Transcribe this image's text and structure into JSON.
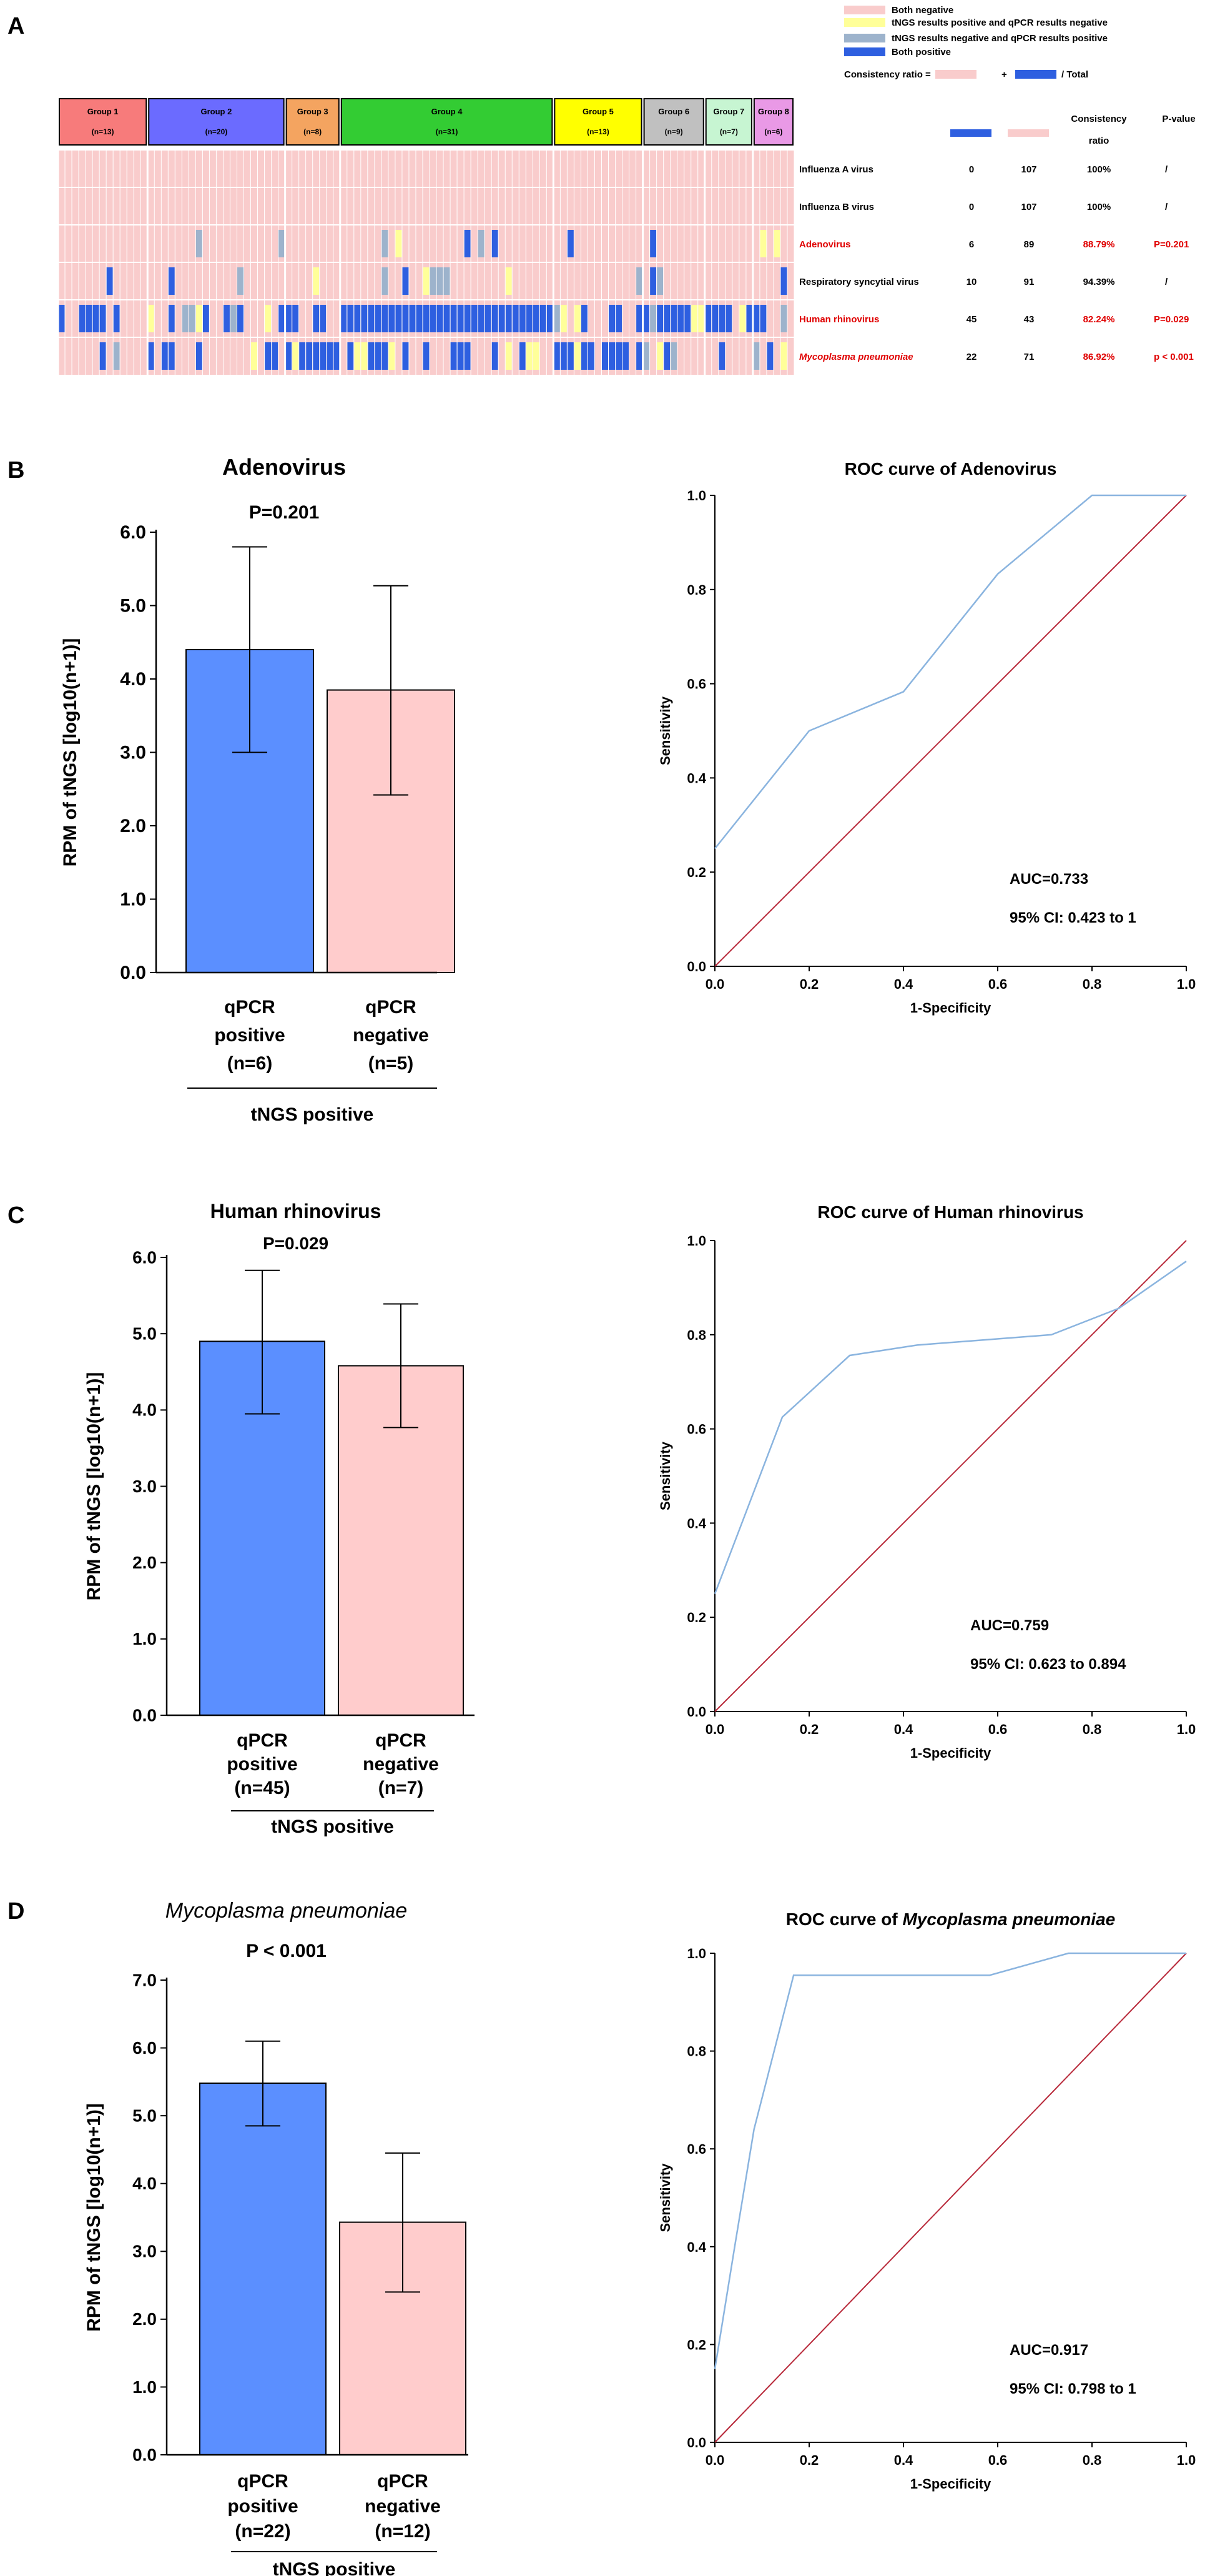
{
  "panel_labels": [
    "A",
    "B",
    "C",
    "D"
  ],
  "colors": {
    "both_negative": "#F9CCCC",
    "tngs_pos_qpcr_neg": "#FFFF99",
    "tngs_neg_qpcr_pos": "#9DB3CC",
    "both_positive": "#2E5FE0",
    "bar_blue": "#5B8FFF",
    "bar_pink": "#FFCCCC",
    "roc_curve": "#8AB4DF",
    "roc_diagonal": "#B8293A",
    "highlight_red": "#E00000"
  },
  "heatmap": {
    "legend": [
      {
        "label": "Both negative",
        "color_key": "both_negative"
      },
      {
        "label": "tNGS results positive and qPCR results negative",
        "color_key": "tngs_pos_qpcr_neg"
      },
      {
        "label": "tNGS results negative and qPCR results positive",
        "color_key": "tngs_neg_qpcr_pos"
      },
      {
        "label": "Both positive",
        "color_key": "both_positive"
      }
    ],
    "consistency_formula": {
      "prefix": "Consistency ratio =",
      "plus": "+",
      "suffix": "/ Total"
    },
    "groups": [
      {
        "label": "Group 1",
        "n": "(n=13)",
        "color": "#F77B7B"
      },
      {
        "label": "Group 2",
        "n": "(n=20)",
        "color": "#6B6BFF"
      },
      {
        "label": "Group 3",
        "n": "(n=8)",
        "color": "#F4A460"
      },
      {
        "label": "Group 4",
        "n": "(n=31)",
        "color": "#33CC33"
      },
      {
        "label": "Group 5",
        "n": "(n=13)",
        "color": "#FFFF00"
      },
      {
        "label": "Group 6",
        "n": "(n=9)",
        "color": "#C0C0C0"
      },
      {
        "label": "Group 7",
        "n": "(n=7)",
        "color": "#C7F5D2"
      },
      {
        "label": "Group 8",
        "n": "(n=6)",
        "color": "#E999E6"
      }
    ],
    "table_headers": {
      "consistency": "Consistency ratio",
      "pvalue": "P-value"
    },
    "rows": [
      {
        "name": "Influenza A virus",
        "both_pos": "0",
        "both_neg": "107",
        "ratio": "100%",
        "p": "/",
        "highlight": false,
        "italic": false
      },
      {
        "name": "Influenza B virus",
        "both_pos": "0",
        "both_neg": "107",
        "ratio": "100%",
        "p": "/",
        "highlight": false,
        "italic": false
      },
      {
        "name": "Adenovirus",
        "both_pos": "6",
        "both_neg": "89",
        "ratio": "88.79%",
        "p": "P=0.201",
        "highlight": true,
        "italic": false
      },
      {
        "name": "Respiratory syncytial virus",
        "both_pos": "10",
        "both_neg": "91",
        "ratio": "94.39%",
        "p": "/",
        "highlight": false,
        "italic": false
      },
      {
        "name": "Human rhinovirus",
        "both_pos": "45",
        "both_neg": "43",
        "ratio": "82.24%",
        "p": "P=0.029",
        "highlight": true,
        "italic": false
      },
      {
        "name": "Mycoplasma pneumoniae",
        "both_pos": "22",
        "both_neg": "71",
        "ratio": "86.92%",
        "p": "p < 0.001",
        "highlight": true,
        "italic": true
      }
    ]
  },
  "chart_data": [
    {
      "type": "bar",
      "panel": "B",
      "title": "Adenovirus",
      "title_italic": false,
      "pvalue": "P=0.201",
      "ylabel": "RPM of tNGS [log10(n+1)]",
      "ylim": [
        0,
        6
      ],
      "yticks": [
        "0.0",
        "1.0",
        "2.0",
        "3.0",
        "4.0",
        "5.0",
        "6.0"
      ],
      "categories": [
        [
          "qPCR",
          "positive",
          "(n=6)"
        ],
        [
          "qPCR",
          "negative",
          "(n=5)"
        ]
      ],
      "values": [
        4.4,
        3.85
      ],
      "errors_low": [
        3.0,
        2.42
      ],
      "errors_high": [
        5.8,
        5.27
      ],
      "group_label": "tNGS positive"
    },
    {
      "type": "line",
      "panel": "B",
      "title": "ROC curve of Adenovirus",
      "title_italic_part": "",
      "xlabel": "1-Specificity",
      "ylabel": "Sensitivity",
      "xlim": [
        0,
        1
      ],
      "ylim": [
        0,
        1
      ],
      "xticks": [
        "0.0",
        "0.2",
        "0.4",
        "0.6",
        "0.8",
        "1.0"
      ],
      "yticks": [
        "0.0",
        "0.2",
        "0.4",
        "0.6",
        "0.8",
        "1.0"
      ],
      "series": [
        {
          "name": "ROC",
          "x": [
            0,
            0.2,
            0.4,
            0.6,
            0.8,
            1.0
          ],
          "y": [
            0.25,
            0.5,
            0.583,
            0.833,
            1.0,
            1.0
          ]
        }
      ],
      "auc": "AUC=0.733",
      "ci": "95% CI: 0.423 to 1"
    },
    {
      "type": "bar",
      "panel": "C",
      "title": "Human rhinovirus",
      "title_italic": false,
      "pvalue": "P=0.029",
      "ylabel": "RPM of tNGS [log10(n+1)]",
      "ylim": [
        0,
        6
      ],
      "yticks": [
        "0.0",
        "1.0",
        "2.0",
        "3.0",
        "4.0",
        "5.0",
        "6.0"
      ],
      "categories": [
        [
          "qPCR",
          "positive",
          "(n=45)"
        ],
        [
          "qPCR",
          "negative",
          "(n=7)"
        ]
      ],
      "values": [
        4.9,
        4.58
      ],
      "errors_low": [
        3.95,
        3.77
      ],
      "errors_high": [
        5.83,
        5.39
      ],
      "group_label": "tNGS positive"
    },
    {
      "type": "line",
      "panel": "C",
      "title": "ROC curve of Human rhinovirus",
      "title_italic_part": "",
      "xlabel": "1-Specificity",
      "ylabel": "Sensitivity",
      "xlim": [
        0,
        1
      ],
      "ylim": [
        0,
        1
      ],
      "xticks": [
        "0.0",
        "0.2",
        "0.4",
        "0.6",
        "0.8",
        "1.0"
      ],
      "yticks": [
        "0.0",
        "0.2",
        "0.4",
        "0.6",
        "0.8",
        "1.0"
      ],
      "series": [
        {
          "name": "ROC",
          "x": [
            0,
            0.143,
            0.286,
            0.429,
            0.571,
            0.714,
            0.857,
            1.0
          ],
          "y": [
            0.25,
            0.625,
            0.756,
            0.778,
            0.789,
            0.8,
            0.856,
            0.956
          ]
        }
      ],
      "auc": "AUC=0.759",
      "ci": "95% CI: 0.623 to 0.894"
    },
    {
      "type": "bar",
      "panel": "D",
      "title": "Mycoplasma pneumoniae",
      "title_italic": true,
      "pvalue": "P < 0.001",
      "ylabel": "RPM of tNGS [log10(n+1)]",
      "ylim": [
        0,
        7
      ],
      "yticks": [
        "0.0",
        "1.0",
        "2.0",
        "3.0",
        "4.0",
        "5.0",
        "6.0",
        "7.0"
      ],
      "categories": [
        [
          "qPCR",
          "positive",
          "(n=22)"
        ],
        [
          "qPCR",
          "negative",
          "(n=12)"
        ]
      ],
      "values": [
        5.48,
        3.43
      ],
      "errors_low": [
        4.85,
        2.4
      ],
      "errors_high": [
        6.1,
        4.45
      ],
      "group_label": "tNGS positive"
    },
    {
      "type": "line",
      "panel": "D",
      "title": "ROC curve of ",
      "title_italic_part": "Mycoplasma pneumoniae",
      "xlabel": "1-Specificity",
      "ylabel": "Sensitivity",
      "xlim": [
        0,
        1
      ],
      "ylim": [
        0,
        1
      ],
      "xticks": [
        "0.0",
        "0.2",
        "0.4",
        "0.6",
        "0.8",
        "1.0"
      ],
      "yticks": [
        "0.0",
        "0.2",
        "0.4",
        "0.6",
        "0.8",
        "1.0"
      ],
      "series": [
        {
          "name": "ROC",
          "x": [
            0,
            0.042,
            0.083,
            0.167,
            0.583,
            0.75,
            1.0
          ],
          "y": [
            0.15,
            0.4,
            0.64,
            0.955,
            0.955,
            1.0,
            1.0
          ]
        }
      ],
      "auc": "AUC=0.917",
      "ci": "95% CI: 0.798 to 1"
    }
  ]
}
